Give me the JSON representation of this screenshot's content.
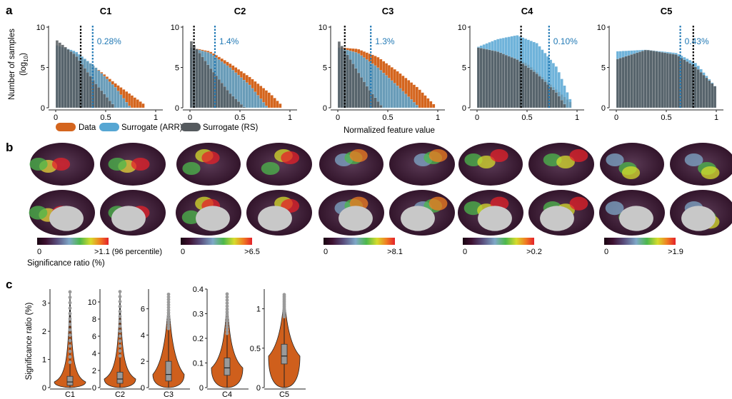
{
  "panels": {
    "a": "a",
    "b": "b",
    "c": "c"
  },
  "colors": {
    "data": "#d4651e",
    "surrogate_arr": "#56a6d3",
    "surrogate_rs": "#555a5e",
    "marker_data": "#000000",
    "marker_arr": "#2179b5",
    "violin": "#cf5f1c"
  },
  "panel_a": {
    "ylabel_line1": "Number of samples",
    "ylabel_line2": "(log",
    "ylabel_sub": "10",
    "ylabel_close": ")",
    "xlabel": "Normalized feature value",
    "legend": [
      "Data",
      "Surrogate (ARR)",
      "Surrogate (RS)"
    ],
    "y_ticks": [
      "0",
      "5",
      "10"
    ],
    "x_ticks": [
      "0",
      "0.5",
      "1"
    ],
    "subplots": [
      {
        "title": "C1",
        "percent": "0.28%"
      },
      {
        "title": "C2",
        "percent": "1.4%"
      },
      {
        "title": "C3",
        "percent": "1.3%"
      },
      {
        "title": "C4",
        "percent": "0.10%"
      },
      {
        "title": "C5",
        "percent": "0.43%"
      }
    ]
  },
  "chart_data": [
    {
      "type": "bar",
      "title": "C1",
      "xlabel": "",
      "ylabel": "Number of samples (log10)",
      "xlim": [
        0,
        1
      ],
      "ylim": [
        0,
        10
      ],
      "threshold_data": 0.25,
      "threshold_arr": 0.37,
      "significance_percent": "0.28%",
      "series": [
        {
          "name": "Data",
          "x": [
            0,
            0.2,
            0.4,
            0.6,
            0.8,
            0.9
          ],
          "y": [
            7.8,
            6.8,
            5.0,
            3.0,
            1.2,
            0.3
          ]
        },
        {
          "name": "Surrogate (ARR)",
          "x": [
            0,
            0.2,
            0.4,
            0.6,
            0.75
          ],
          "y": [
            7.8,
            7.0,
            5.0,
            2.5,
            0
          ]
        },
        {
          "name": "Surrogate (RS)",
          "x": [
            0,
            0.2,
            0.4,
            0.6
          ],
          "y": [
            8.5,
            6.5,
            3.0,
            0
          ]
        }
      ]
    },
    {
      "type": "bar",
      "title": "C2",
      "xlabel": "",
      "ylabel": "",
      "xlim": [
        0,
        1
      ],
      "ylim": [
        0,
        10
      ],
      "threshold_data": 0.04,
      "threshold_arr": 0.25,
      "significance_percent": "1.4%",
      "series": [
        {
          "name": "Data",
          "x": [
            0,
            0.2,
            0.4,
            0.6,
            0.8,
            0.92
          ],
          "y": [
            7.5,
            7.0,
            5.5,
            3.8,
            1.8,
            0.3
          ]
        },
        {
          "name": "Surrogate (ARR)",
          "x": [
            0,
            0.2,
            0.4,
            0.6,
            0.78
          ],
          "y": [
            7.5,
            6.8,
            5.0,
            2.8,
            0
          ]
        },
        {
          "name": "Surrogate (RS)",
          "x": [
            0,
            0.2,
            0.4,
            0.55
          ],
          "y": [
            8.5,
            5.0,
            1.8,
            0
          ]
        }
      ]
    },
    {
      "type": "bar",
      "title": "C3",
      "xlabel": "Normalized feature value",
      "ylabel": "",
      "xlim": [
        0,
        1
      ],
      "ylim": [
        0,
        10
      ],
      "threshold_data": 0.07,
      "threshold_arr": 0.33,
      "significance_percent": "1.3%",
      "series": [
        {
          "name": "Data",
          "x": [
            0,
            0.2,
            0.4,
            0.6,
            0.8,
            0.97
          ],
          "y": [
            7.5,
            7.3,
            6.3,
            4.5,
            2.5,
            0.3
          ]
        },
        {
          "name": "Surrogate (ARR)",
          "x": [
            0,
            0.2,
            0.4,
            0.6,
            0.82
          ],
          "y": [
            7.5,
            6.8,
            5.0,
            2.7,
            0
          ]
        },
        {
          "name": "Surrogate (RS)",
          "x": [
            0,
            0.15,
            0.3,
            0.45
          ],
          "y": [
            8.5,
            5.5,
            2.5,
            0
          ]
        }
      ]
    },
    {
      "type": "bar",
      "title": "C4",
      "xlabel": "",
      "ylabel": "",
      "xlim": [
        0,
        1
      ],
      "ylim": [
        0,
        10
      ],
      "threshold_data": 0.44,
      "threshold_arr": 0.72,
      "significance_percent": "0.10%",
      "series": [
        {
          "name": "Data",
          "x": [
            0,
            0.5,
            0.95
          ],
          "y": [
            7.5,
            5.5,
            0.5
          ]
        },
        {
          "name": "Surrogate (ARR)",
          "x": [
            0,
            0.2,
            0.4,
            0.6,
            0.8,
            0.95
          ],
          "y": [
            7.5,
            8.5,
            9.0,
            8.0,
            5.0,
            0.5
          ]
        },
        {
          "name": "Surrogate (RS)",
          "x": [
            0,
            0.2,
            0.4,
            0.6,
            0.8,
            0.9
          ],
          "y": [
            7.5,
            7.0,
            6.0,
            4.2,
            1.8,
            0
          ]
        }
      ]
    },
    {
      "type": "bar",
      "title": "C5",
      "xlabel": "",
      "ylabel": "",
      "xlim": [
        0,
        1
      ],
      "ylim": [
        0,
        10
      ],
      "threshold_data": 0.77,
      "threshold_arr": 0.64,
      "significance_percent": "0.43%",
      "series": [
        {
          "name": "Data",
          "x": [
            0,
            0.3,
            0.6,
            0.8,
            1.0
          ],
          "y": [
            6.0,
            7.0,
            6.5,
            5.0,
            2.5
          ]
        },
        {
          "name": "Surrogate (ARR)",
          "x": [
            0,
            0.3,
            0.6,
            0.8,
            1.0
          ],
          "y": [
            7.0,
            7.2,
            6.8,
            5.5,
            2.5
          ]
        },
        {
          "name": "Surrogate (RS)",
          "x": [
            0,
            0.3,
            0.6,
            0.8,
            1.0
          ],
          "y": [
            6.0,
            7.2,
            6.6,
            5.0,
            2.5
          ]
        }
      ]
    }
  ],
  "panel_b": {
    "colorbar_title": "Significance ratio (%)",
    "colorbars": [
      {
        "min": "0",
        "max": ">1.1 (96 percentile)"
      },
      {
        "min": "0",
        "max": ">6.5"
      },
      {
        "min": "0",
        "max": ">8.1"
      },
      {
        "min": "0",
        "max": ">0.2"
      },
      {
        "min": "0",
        "max": ">1.9"
      }
    ]
  },
  "panel_c": {
    "ylabel": "Significance ratio (%)",
    "violins": [
      {
        "label": "C1",
        "ticks": [
          "0",
          "1",
          "2",
          "3"
        ],
        "ymax": 3.5,
        "median": 0.2,
        "q1": 0.08,
        "q3": 0.4,
        "whisker_top": 0.9,
        "max": 3.4
      },
      {
        "label": "C2",
        "ticks": [
          "0",
          "2",
          "4",
          "6",
          "8",
          "10"
        ],
        "ymax": 11.5,
        "median": 1.0,
        "q1": 0.5,
        "q3": 1.8,
        "whisker_top": 3.7,
        "max": 11.2
      },
      {
        "label": "C3",
        "ticks": [
          "0",
          "2",
          "4",
          "6"
        ],
        "ymax": 7.5,
        "median": 1.0,
        "q1": 0.5,
        "q3": 2.0,
        "whisker_top": 4.5,
        "max": 7.1
      },
      {
        "label": "C4",
        "ticks": [
          "0",
          "0.1",
          "0.2",
          "0.3",
          "0.4"
        ],
        "ymax": 0.4,
        "median": 0.08,
        "q1": 0.05,
        "q3": 0.12,
        "whisker_top": 0.22,
        "max": 0.38
      },
      {
        "label": "C5",
        "ticks": [
          "0",
          "0.5",
          "1"
        ],
        "ymax": 1.25,
        "median": 0.4,
        "q1": 0.3,
        "q3": 0.55,
        "whisker_top": 0.9,
        "max": 1.18
      }
    ]
  }
}
